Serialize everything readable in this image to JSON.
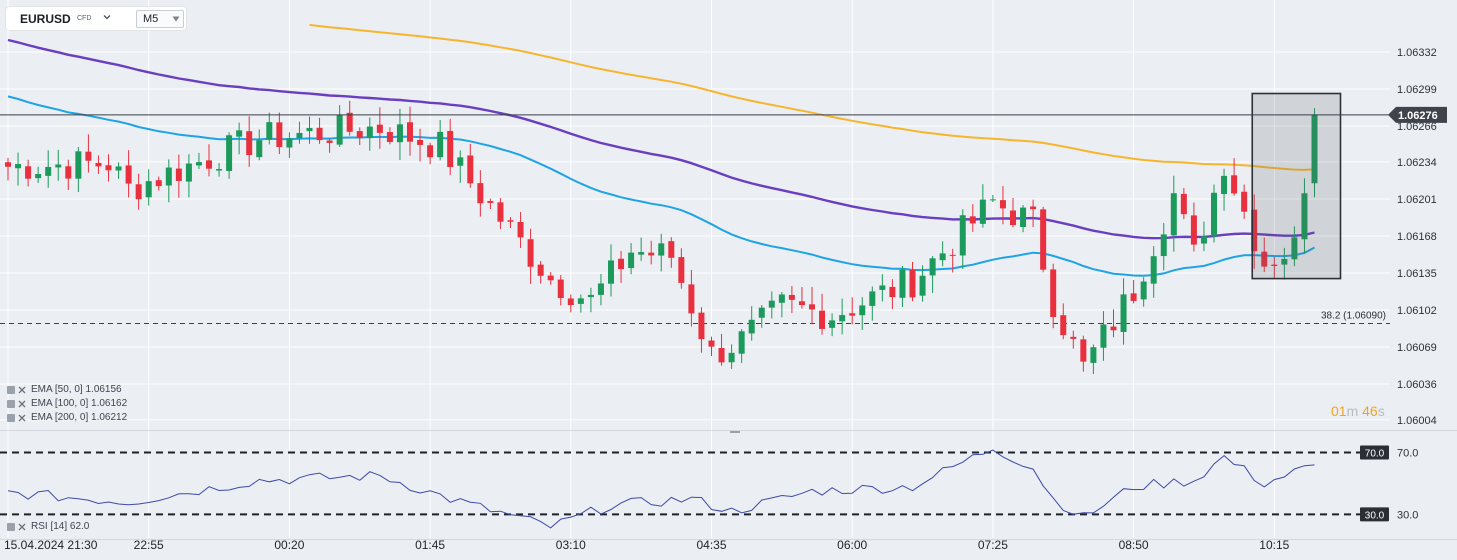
{
  "header": {
    "symbol": "EURUSD",
    "instrument_type": "CFD",
    "timeframe": "M5"
  },
  "countdown": {
    "minutes": "01",
    "minutes_unit": "m",
    "seconds": "46",
    "seconds_unit": "s"
  },
  "legend": [
    {
      "text": "EMA  [50,  0] 1.06156"
    },
    {
      "text": "EMA  [100,  0] 1.06162"
    },
    {
      "text": "EMA  [200,  0] 1.06212"
    }
  ],
  "rsi_legend": "RSI  [14]  62.0",
  "colors": {
    "bull": "#1b9a5b",
    "bear": "#e8303f",
    "ema50": "#1ea4e6",
    "ema100": "#6a3ec0",
    "ema200": "#f6b52c",
    "rsi": "#3c4aa8",
    "background": "#ebeef2"
  },
  "chart_data": [
    {
      "type": "candlestick",
      "symbol": "EURUSD",
      "timeframe": "M5",
      "ylim": [
        1.05995,
        1.06365
      ],
      "y_ticks": [
        1.06004,
        1.06036,
        1.06069,
        1.06102,
        1.06135,
        1.06168,
        1.06201,
        1.06234,
        1.06266,
        1.06299,
        1.06332
      ],
      "x_tick_labels": [
        "15.04.2024  21:30",
        "22:55",
        "00:20",
        "01:45",
        "03:10",
        "04:35",
        "06:00",
        "07:25",
        "08:50",
        "10:15"
      ],
      "last_price": 1.06276,
      "price_level": {
        "label": "38.2 (1.06090)",
        "value": 1.0609
      },
      "grid": true,
      "series": [
        {
          "name": "EMA [50, 0]",
          "type": "line",
          "last": 1.06156
        },
        {
          "name": "EMA [100, 0]",
          "type": "line",
          "last": 1.06162
        },
        {
          "name": "EMA [200, 0]",
          "type": "line",
          "last": 1.06212
        }
      ],
      "highlight_box": {
        "from_candle": 125,
        "to_candle": 130,
        "low": 1.0613,
        "high": 1.06295
      },
      "ema200_from_candle": 30,
      "key_points": [
        {
          "t": 0,
          "close": 1.0623
        },
        {
          "t": 10,
          "close": 1.06233
        },
        {
          "t": 12,
          "close": 1.0621
        },
        {
          "t": 25,
          "close": 1.06255
        },
        {
          "t": 37,
          "close": 1.06265
        },
        {
          "t": 43,
          "close": 1.06248
        },
        {
          "t": 54,
          "close": 1.0613
        },
        {
          "t": 58,
          "close": 1.0611
        },
        {
          "t": 62,
          "close": 1.06155
        },
        {
          "t": 66,
          "close": 1.0615
        },
        {
          "t": 70,
          "close": 1.06062
        },
        {
          "t": 73,
          "close": 1.06075
        },
        {
          "t": 77,
          "close": 1.06105
        },
        {
          "t": 82,
          "close": 1.06098
        },
        {
          "t": 90,
          "close": 1.06128
        },
        {
          "t": 98,
          "close": 1.06198
        },
        {
          "t": 102,
          "close": 1.0618
        },
        {
          "t": 104,
          "close": 1.0611
        },
        {
          "t": 107,
          "close": 1.0605
        },
        {
          "t": 112,
          "close": 1.0612
        },
        {
          "t": 116,
          "close": 1.06205
        },
        {
          "t": 118,
          "close": 1.0615
        },
        {
          "t": 121,
          "close": 1.06235
        },
        {
          "t": 125,
          "close": 1.06145
        },
        {
          "t": 128,
          "close": 1.06158
        },
        {
          "t": 130,
          "close": 1.06276
        }
      ]
    },
    {
      "type": "line",
      "name": "RSI [14]",
      "last": 62.0,
      "ylim": [
        18,
        80
      ],
      "levels": [
        70.0,
        30.0
      ],
      "key_points": [
        {
          "t": 0,
          "v": 44
        },
        {
          "t": 12,
          "v": 38
        },
        {
          "t": 25,
          "v": 52
        },
        {
          "t": 37,
          "v": 55
        },
        {
          "t": 44,
          "v": 40
        },
        {
          "t": 54,
          "v": 22
        },
        {
          "t": 60,
          "v": 36
        },
        {
          "t": 68,
          "v": 40
        },
        {
          "t": 72,
          "v": 32
        },
        {
          "t": 80,
          "v": 45
        },
        {
          "t": 90,
          "v": 48
        },
        {
          "t": 98,
          "v": 73
        },
        {
          "t": 102,
          "v": 60
        },
        {
          "t": 104,
          "v": 40
        },
        {
          "t": 107,
          "v": 28
        },
        {
          "t": 112,
          "v": 48
        },
        {
          "t": 118,
          "v": 52
        },
        {
          "t": 121,
          "v": 67
        },
        {
          "t": 125,
          "v": 50
        },
        {
          "t": 130,
          "v": 62
        }
      ]
    }
  ]
}
